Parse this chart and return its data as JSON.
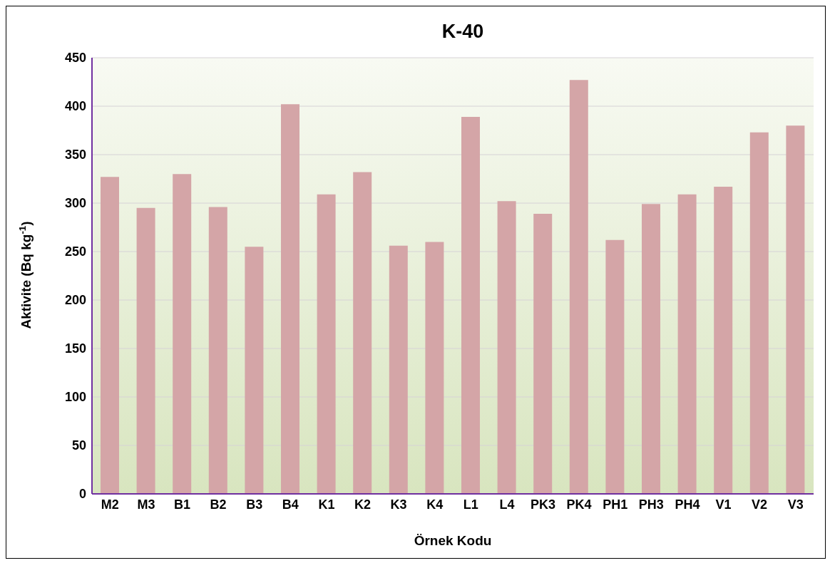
{
  "chart_data": {
    "type": "bar",
    "title": "K-40",
    "xlabel": "Örnek Kodu",
    "ylabel": "Aktivite (Bq kg$^{-1}$)",
    "categories": [
      "M2",
      "M3",
      "B1",
      "B2",
      "B3",
      "B4",
      "K1",
      "K2",
      "K3",
      "K4",
      "L1",
      "L4",
      "PK3",
      "PK4",
      "PH1",
      "PH3",
      "PH4",
      "V1",
      "V2",
      "V3"
    ],
    "values": [
      327,
      295,
      330,
      296,
      255,
      402,
      309,
      332,
      256,
      260,
      389,
      302,
      289,
      427,
      262,
      299,
      309,
      317,
      373,
      380
    ],
    "color": "#d4a5a7",
    "ylim": [
      0,
      450
    ],
    "yticks": [
      0,
      50,
      100,
      150,
      200,
      250,
      300,
      350,
      400,
      450
    ],
    "grid": "y"
  }
}
